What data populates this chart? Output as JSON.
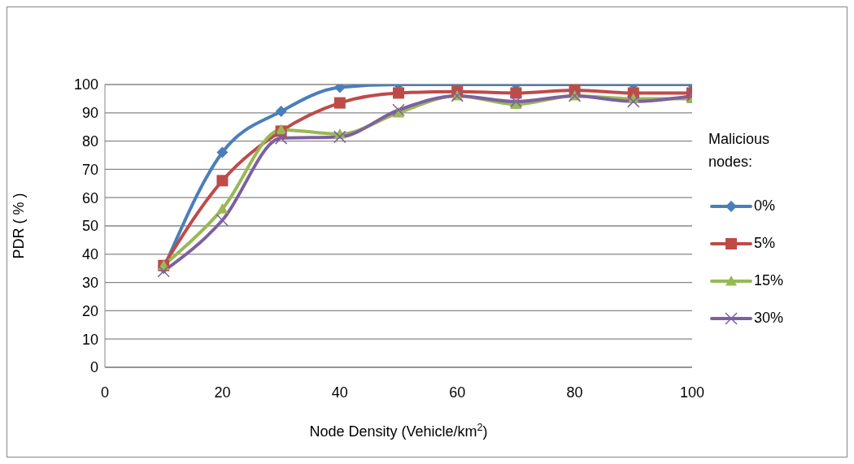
{
  "chart_data": {
    "type": "line",
    "xlabel": "Node Density (Vehicle/km$^{2}$)",
    "ylabel": "PDR ( % )",
    "legend_title": "Malicious nodes:",
    "x": [
      10,
      20,
      30,
      40,
      50,
      60,
      70,
      80,
      90,
      100
    ],
    "series": [
      {
        "name": "0%",
        "color": "#4a7ebb",
        "marker": "diamond",
        "values": [
          35,
          76,
          90.5,
          99,
          100,
          100,
          100,
          100,
          100,
          100
        ]
      },
      {
        "name": "5%",
        "color": "#be4b48",
        "marker": "square",
        "values": [
          36,
          66,
          83.5,
          93.5,
          97,
          97.5,
          97,
          98,
          97,
          97
        ]
      },
      {
        "name": "15%",
        "color": "#98b954",
        "marker": "triangle",
        "values": [
          36,
          56,
          84,
          82.5,
          90,
          96,
          93,
          96,
          95,
          95
        ]
      },
      {
        "name": "30%",
        "color": "#7d60a0",
        "marker": "cross",
        "values": [
          34,
          52,
          81,
          81.5,
          91,
          96,
          94,
          96,
          94,
          96
        ]
      }
    ],
    "xlim": [
      0,
      100
    ],
    "xticks": [
      0,
      20,
      40,
      60,
      80,
      100
    ],
    "ylim": [
      0,
      100
    ],
    "yticks": [
      0,
      10,
      20,
      30,
      40,
      50,
      60,
      70,
      80,
      90,
      100
    ],
    "grid": "y",
    "legend": "right"
  }
}
